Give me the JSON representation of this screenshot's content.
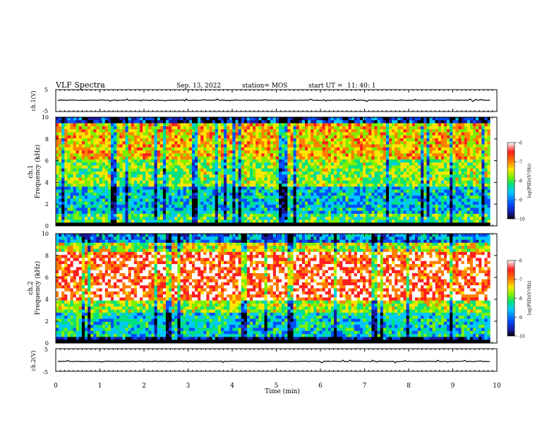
{
  "header": {
    "title": "VLF Spectra",
    "date": "Sep. 13, 2022",
    "station": "station= MOS",
    "start_label": "start  UT =",
    "start_time": "11: 40: 1"
  },
  "colors": {
    "colormap": [
      "#000000",
      "#1a1aa0",
      "#0050ff",
      "#00c8ff",
      "#00e080",
      "#7ff000",
      "#ffe600",
      "#ff8000",
      "#ff1f1f",
      "#ffffff"
    ],
    "trace": "#000000",
    "frame": "#000000"
  },
  "chart_data": [
    {
      "type": "line",
      "name": "ch1-waveform",
      "ylabel": "ch.1(V)",
      "ylim": [
        -5,
        5
      ],
      "yticks": [
        "5",
        "-5"
      ],
      "series": [
        {
          "values_desc": "near-constant trace",
          "x": [
            0,
            9.85
          ],
          "y": [
            0,
            0
          ]
        }
      ]
    },
    {
      "type": "heatmap",
      "name": "ch1-spectrogram",
      "ylabel": [
        "ch.1",
        "Frequency  (kHz)"
      ],
      "ylim": [
        0,
        10
      ],
      "yticks": [
        "0",
        "2",
        "4",
        "6",
        "8",
        "10"
      ],
      "xlim": [
        0,
        9.85
      ],
      "colorbar": {
        "label": "log(PSD)(V²/Hz)",
        "ticks": [
          "-6",
          "-7",
          "-8",
          "-9",
          "-10"
        ],
        "range": [
          -10,
          -6
        ]
      }
    },
    {
      "type": "heatmap",
      "name": "ch2-spectrogram",
      "ylabel": [
        "ch.2",
        "Frequency  (kHz)"
      ],
      "ylim": [
        0,
        10
      ],
      "yticks": [
        "0",
        "2",
        "4",
        "6",
        "8",
        "10"
      ],
      "xlim": [
        0,
        9.85
      ],
      "colorbar": {
        "label": "log(PSD)(V²/Hz)",
        "ticks": [
          "-6",
          "-7",
          "-8",
          "-9",
          "-10"
        ],
        "range": [
          -10,
          -6
        ]
      }
    },
    {
      "type": "line",
      "name": "ch2-waveform",
      "ylabel": "ch.2(V)",
      "ylim": [
        -5,
        5
      ],
      "yticks": [
        "5",
        "-5"
      ],
      "series": [
        {
          "values_desc": "near-constant trace",
          "x": [
            0,
            9.85
          ],
          "y": [
            0,
            0
          ]
        }
      ]
    }
  ],
  "xaxis": {
    "label": "Time  (min)",
    "ticks": [
      "0",
      "1",
      "2",
      "3",
      "4",
      "5",
      "6",
      "7",
      "8",
      "9",
      "10"
    ],
    "xlim": [
      0,
      10
    ]
  }
}
